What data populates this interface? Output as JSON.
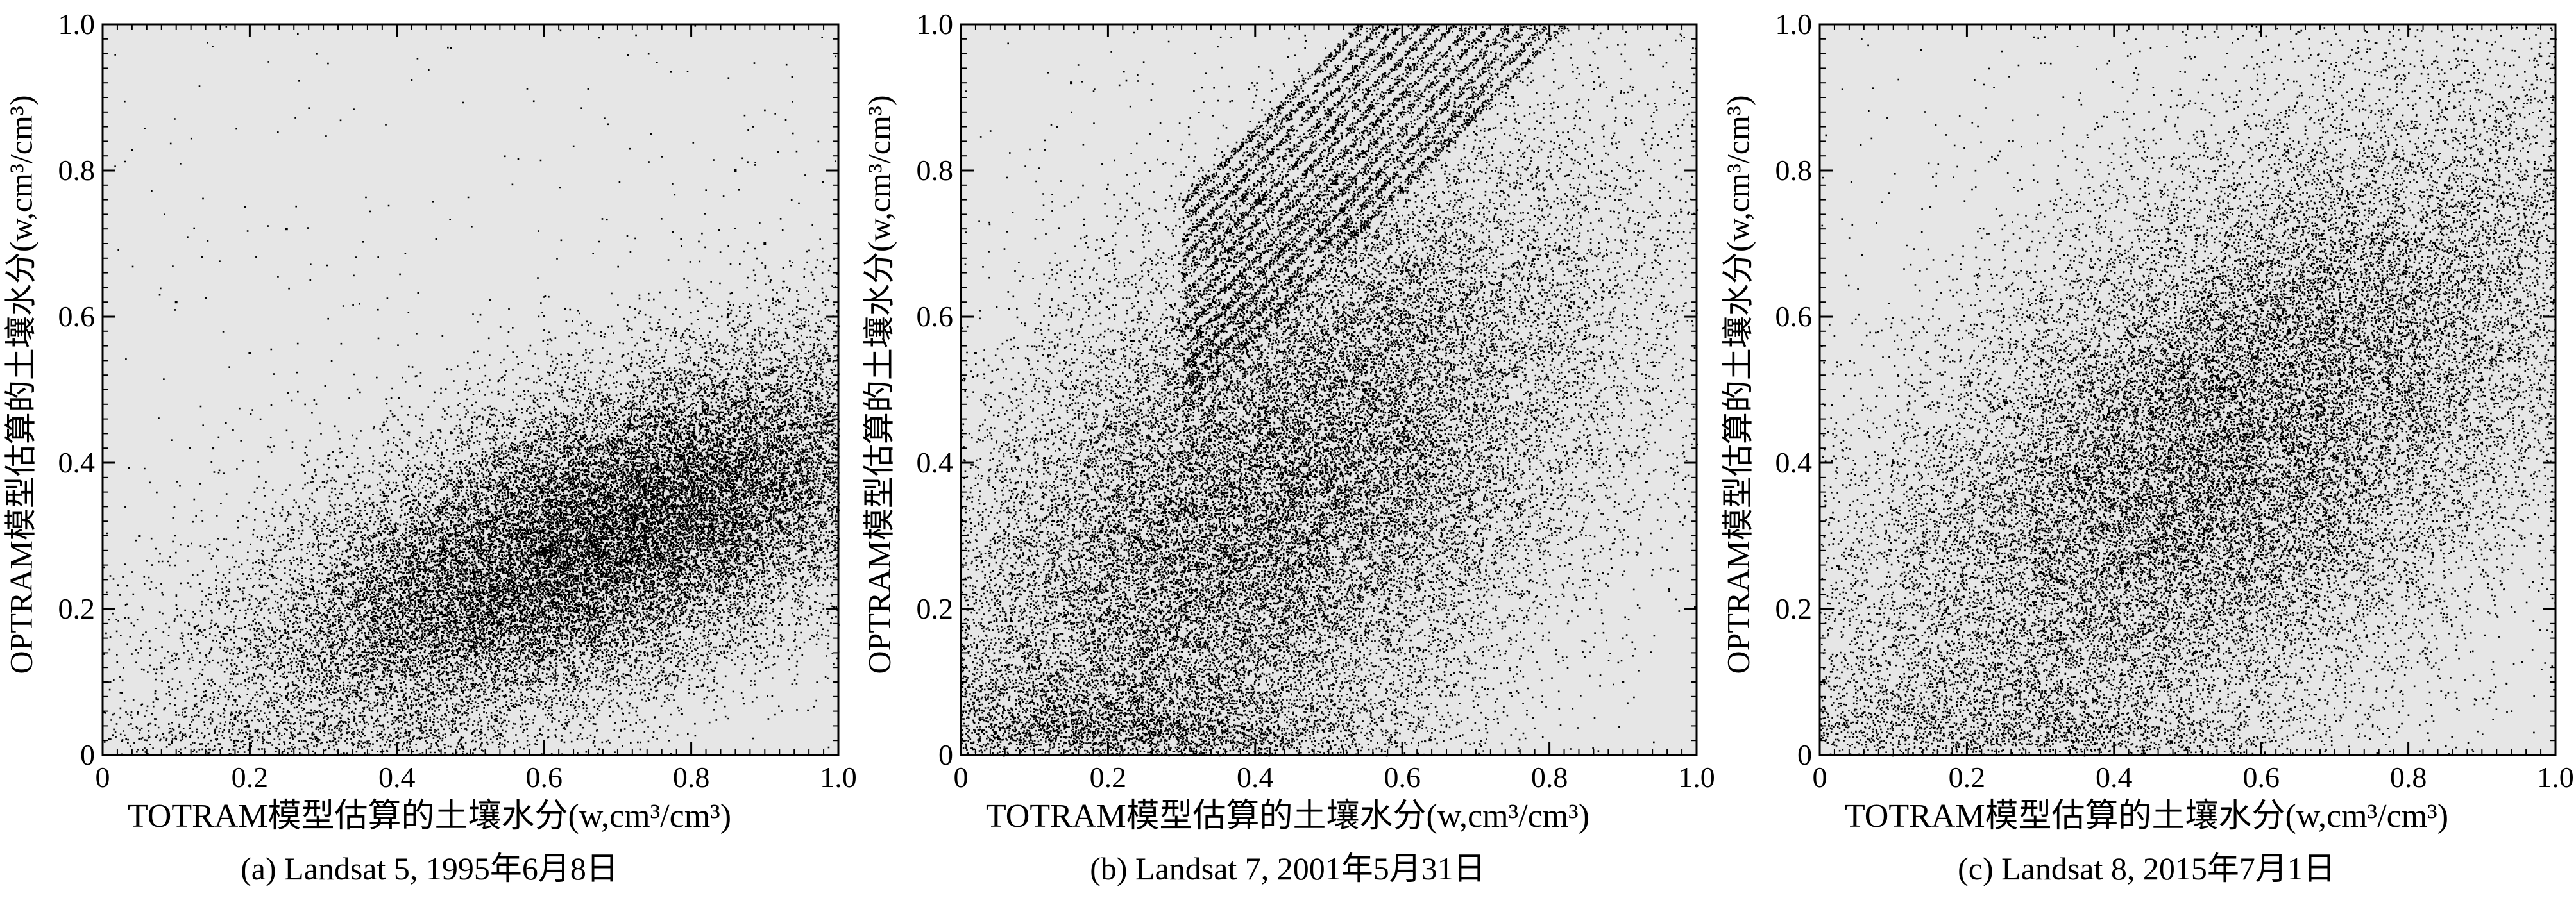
{
  "chart_data": [
    {
      "type": "scatter",
      "caption": "(a) Landsat 5, 1995年6月8日",
      "xlabel": "TOTRAM模型估算的土壤水分(w,cm³/cm³)",
      "ylabel": "OPTRAM模型估算的土壤水分(w,cm³/cm³)",
      "xlim": [
        0,
        1.0
      ],
      "ylim": [
        0,
        1.0
      ],
      "x_ticks": [
        "0",
        "0.2",
        "0.4",
        "0.6",
        "0.8",
        "1.0"
      ],
      "y_ticks": [
        "0",
        "0.2",
        "0.4",
        "0.6",
        "0.8",
        "1.0"
      ],
      "background": "#e6e6e6",
      "point_color": "#000000",
      "grid": false,
      "distribution": {
        "center_x": 0.68,
        "center_y": 0.3,
        "slope": 0.42,
        "spread_along": 0.27,
        "spread_across": 0.1
      },
      "points": [
        [
          0.18,
          0.05
        ],
        [
          0.25,
          0.08
        ],
        [
          0.32,
          0.12
        ],
        [
          0.38,
          0.15
        ],
        [
          0.45,
          0.2
        ],
        [
          0.5,
          0.18
        ],
        [
          0.55,
          0.25
        ],
        [
          0.6,
          0.3
        ],
        [
          0.62,
          0.22
        ],
        [
          0.66,
          0.35
        ],
        [
          0.7,
          0.4
        ],
        [
          0.72,
          0.28
        ],
        [
          0.75,
          0.45
        ],
        [
          0.78,
          0.5
        ],
        [
          0.8,
          0.38
        ],
        [
          0.82,
          0.55
        ],
        [
          0.85,
          0.6
        ],
        [
          0.88,
          0.52
        ],
        [
          0.9,
          0.7
        ],
        [
          0.92,
          0.62
        ],
        [
          0.95,
          0.45
        ],
        [
          0.86,
          0.8
        ],
        [
          0.65,
          0.15
        ],
        [
          0.58,
          0.1
        ],
        [
          0.4,
          0.08
        ],
        [
          0.3,
          0.04
        ],
        [
          0.76,
          0.2
        ],
        [
          0.68,
          0.48
        ],
        [
          0.1,
          0.62
        ],
        [
          0.15,
          0.42
        ],
        [
          0.05,
          0.3
        ],
        [
          0.2,
          0.55
        ],
        [
          0.25,
          0.72
        ],
        [
          0.08,
          0.12
        ]
      ]
    },
    {
      "type": "scatter",
      "caption": "(b) Landsat 7, 2001年5月31日",
      "xlabel": "TOTRAM模型估算的土壤水分(w,cm³/cm³)",
      "ylabel": "OPTRAM模型估算的土壤水分(w,cm³/cm³)",
      "xlim": [
        0,
        1.0
      ],
      "ylim": [
        0,
        1.0
      ],
      "x_ticks": [
        "0",
        "0.2",
        "0.4",
        "0.6",
        "0.8",
        "1.0"
      ],
      "y_ticks": [
        "0",
        "0.2",
        "0.4",
        "0.6",
        "0.8",
        "1.0"
      ],
      "background": "#e6e6e6",
      "point_color": "#000000",
      "grid": false,
      "distribution": {
        "center_x": 0.42,
        "center_y": 0.35,
        "slope": 1.0,
        "spread_along": 0.3,
        "spread_across": 0.17,
        "streaks": true
      },
      "points": [
        [
          0.05,
          0.2
        ],
        [
          0.1,
          0.25
        ],
        [
          0.15,
          0.18
        ],
        [
          0.2,
          0.3
        ],
        [
          0.25,
          0.22
        ],
        [
          0.3,
          0.35
        ],
        [
          0.35,
          0.28
        ],
        [
          0.4,
          0.45
        ],
        [
          0.45,
          0.4
        ],
        [
          0.5,
          0.55
        ],
        [
          0.55,
          0.5
        ],
        [
          0.6,
          0.68
        ],
        [
          0.65,
          0.75
        ],
        [
          0.7,
          0.85
        ],
        [
          0.75,
          0.9
        ],
        [
          0.8,
          0.98
        ],
        [
          0.52,
          0.95
        ],
        [
          0.45,
          0.82
        ],
        [
          0.38,
          0.7
        ],
        [
          0.3,
          0.58
        ],
        [
          0.2,
          0.45
        ],
        [
          0.6,
          0.25
        ],
        [
          0.7,
          0.3
        ],
        [
          0.8,
          0.45
        ],
        [
          0.85,
          0.62
        ],
        [
          0.9,
          0.1
        ],
        [
          0.2,
          0.05
        ],
        [
          0.1,
          0.12
        ],
        [
          0.02,
          0.55
        ],
        [
          0.15,
          0.92
        ]
      ]
    },
    {
      "type": "scatter",
      "caption": "(c) Landsat 8, 2015年7月1日",
      "xlabel": "TOTRAM模型估算的土壤水分(w,cm³/cm³)",
      "ylabel": "OPTRAM模型估算的土壤水分(w,cm³/cm³)",
      "xlim": [
        0,
        1.0
      ],
      "ylim": [
        0,
        1.0
      ],
      "x_ticks": [
        "0",
        "0.2",
        "0.4",
        "0.6",
        "0.8",
        "1.0"
      ],
      "y_ticks": [
        "0",
        "0.2",
        "0.4",
        "0.6",
        "0.8",
        "1.0"
      ],
      "background": "#e6e6e6",
      "point_color": "#000000",
      "grid": false,
      "distribution": {
        "center_x": 0.55,
        "center_y": 0.42,
        "slope": 0.85,
        "spread_along": 0.33,
        "spread_across": 0.17
      },
      "points": [
        [
          0.05,
          0.1
        ],
        [
          0.1,
          0.15
        ],
        [
          0.15,
          0.12
        ],
        [
          0.2,
          0.2
        ],
        [
          0.25,
          0.18
        ],
        [
          0.3,
          0.25
        ],
        [
          0.35,
          0.3
        ],
        [
          0.4,
          0.35
        ],
        [
          0.45,
          0.4
        ],
        [
          0.5,
          0.45
        ],
        [
          0.55,
          0.5
        ],
        [
          0.6,
          0.55
        ],
        [
          0.65,
          0.6
        ],
        [
          0.7,
          0.7
        ],
        [
          0.72,
          0.75
        ],
        [
          0.75,
          0.8
        ],
        [
          0.8,
          0.85
        ],
        [
          0.85,
          0.78
        ],
        [
          0.9,
          0.65
        ],
        [
          0.95,
          0.55
        ],
        [
          0.98,
          0.3
        ],
        [
          0.5,
          0.1
        ],
        [
          0.3,
          0.05
        ],
        [
          0.6,
          0.2
        ],
        [
          0.75,
          0.35
        ],
        [
          0.25,
          0.6
        ],
        [
          0.15,
          0.75
        ],
        [
          0.35,
          0.72
        ],
        [
          0.1,
          0.4
        ],
        [
          0.88,
          0.95
        ]
      ]
    }
  ]
}
